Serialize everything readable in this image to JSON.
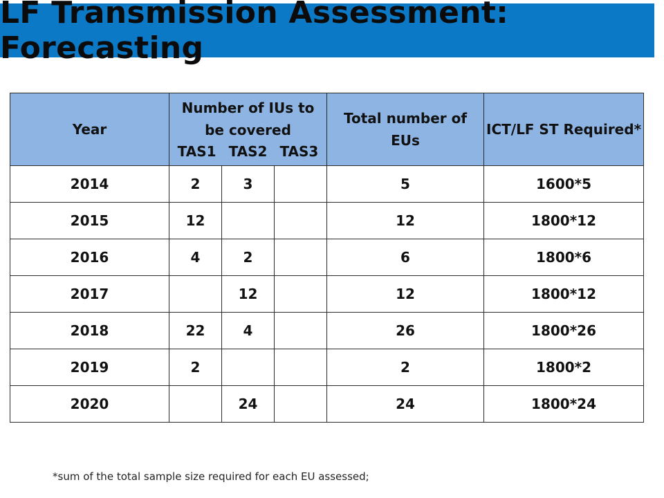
{
  "title": "LF Transmission Assessment: Forecasting",
  "table": {
    "headers": {
      "year": "Year",
      "ius_line1": "Number of IUs to",
      "ius_line2": "be covered",
      "tas1": "TAS1",
      "tas2": "TAS2",
      "tas3": "TAS3",
      "total_eus": "Total number of EUs",
      "ict": "ICT/LF ST Required*"
    },
    "rows": [
      {
        "year": "2014",
        "tas1": "2",
        "tas2": "3",
        "tas3": "",
        "total": "5",
        "ict": "1600*5"
      },
      {
        "year": "2015",
        "tas1": "12",
        "tas2": "",
        "tas3": "",
        "total": "12",
        "ict": "1800*12"
      },
      {
        "year": "2016",
        "tas1": "4",
        "tas2": "2",
        "tas3": "",
        "total": "6",
        "ict": "1800*6"
      },
      {
        "year": "2017",
        "tas1": "",
        "tas2": "12",
        "tas3": "",
        "total": "12",
        "ict": "1800*12"
      },
      {
        "year": "2018",
        "tas1": "22",
        "tas2": "4",
        "tas3": "",
        "total": "26",
        "ict": "1800*26"
      },
      {
        "year": "2019",
        "tas1": "2",
        "tas2": "",
        "tas3": "",
        "total": "2",
        "ict": "1800*2"
      },
      {
        "year": "2020",
        "tas1": "",
        "tas2": "24",
        "tas3": "",
        "total": "24",
        "ict": "1800*24"
      }
    ]
  },
  "footnote": "*sum of the total sample size required for each EU assessed;",
  "colors": {
    "title_bar": "#0c79c7",
    "header_fill": "#8eb4e3"
  }
}
